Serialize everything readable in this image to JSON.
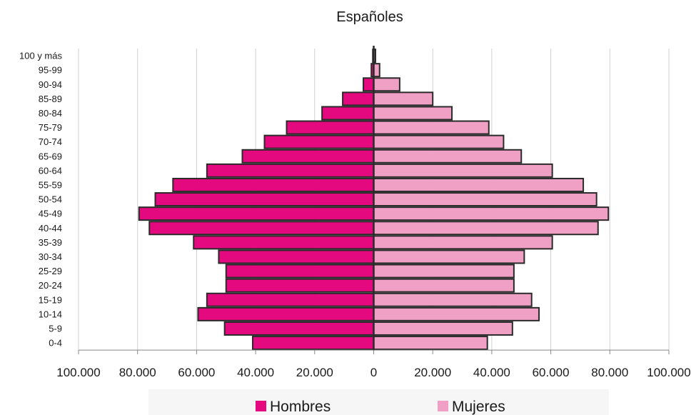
{
  "chart_data": {
    "type": "bar",
    "orientation": "horizontal",
    "subtype": "population-pyramid",
    "title": "Españoles",
    "categories": [
      "100 y más",
      "95-99",
      "90-94",
      "85-89",
      "80-84",
      "75-79",
      "70-74",
      "65-69",
      "60-64",
      "55-59",
      "50-54",
      "45-49",
      "40-44",
      "35-39",
      "30-34",
      "25-29",
      "20-24",
      "15-19",
      "10-14",
      "5-9",
      "0-4"
    ],
    "series": [
      {
        "name": "Hombres",
        "color": "#e5097f",
        "values": [
          300,
          800,
          3500,
          10500,
          17500,
          29500,
          37000,
          44500,
          56500,
          68000,
          74000,
          79500,
          76000,
          61000,
          52500,
          50000,
          50000,
          56500,
          59500,
          50500,
          41000
        ]
      },
      {
        "name": "Mujeres",
        "color": "#f1a0c5",
        "values": [
          600,
          2000,
          8800,
          20000,
          26500,
          39000,
          44000,
          50000,
          60500,
          71000,
          75500,
          79500,
          76000,
          60500,
          51000,
          47500,
          47500,
          53500,
          56000,
          47000,
          38500
        ]
      }
    ],
    "xlim": [
      -100000,
      100000
    ],
    "x_ticks": [
      -100000,
      -80000,
      -60000,
      -40000,
      -20000,
      0,
      20000,
      40000,
      60000,
      80000,
      100000
    ],
    "x_tick_labels": [
      "100.000",
      "80.000",
      "60.000",
      "40.000",
      "20.000",
      "0",
      "20.000",
      "40.000",
      "60.000",
      "80.000",
      "100.000"
    ],
    "grid": "vertical",
    "legend": "bottom",
    "xlabel": "",
    "ylabel": ""
  }
}
